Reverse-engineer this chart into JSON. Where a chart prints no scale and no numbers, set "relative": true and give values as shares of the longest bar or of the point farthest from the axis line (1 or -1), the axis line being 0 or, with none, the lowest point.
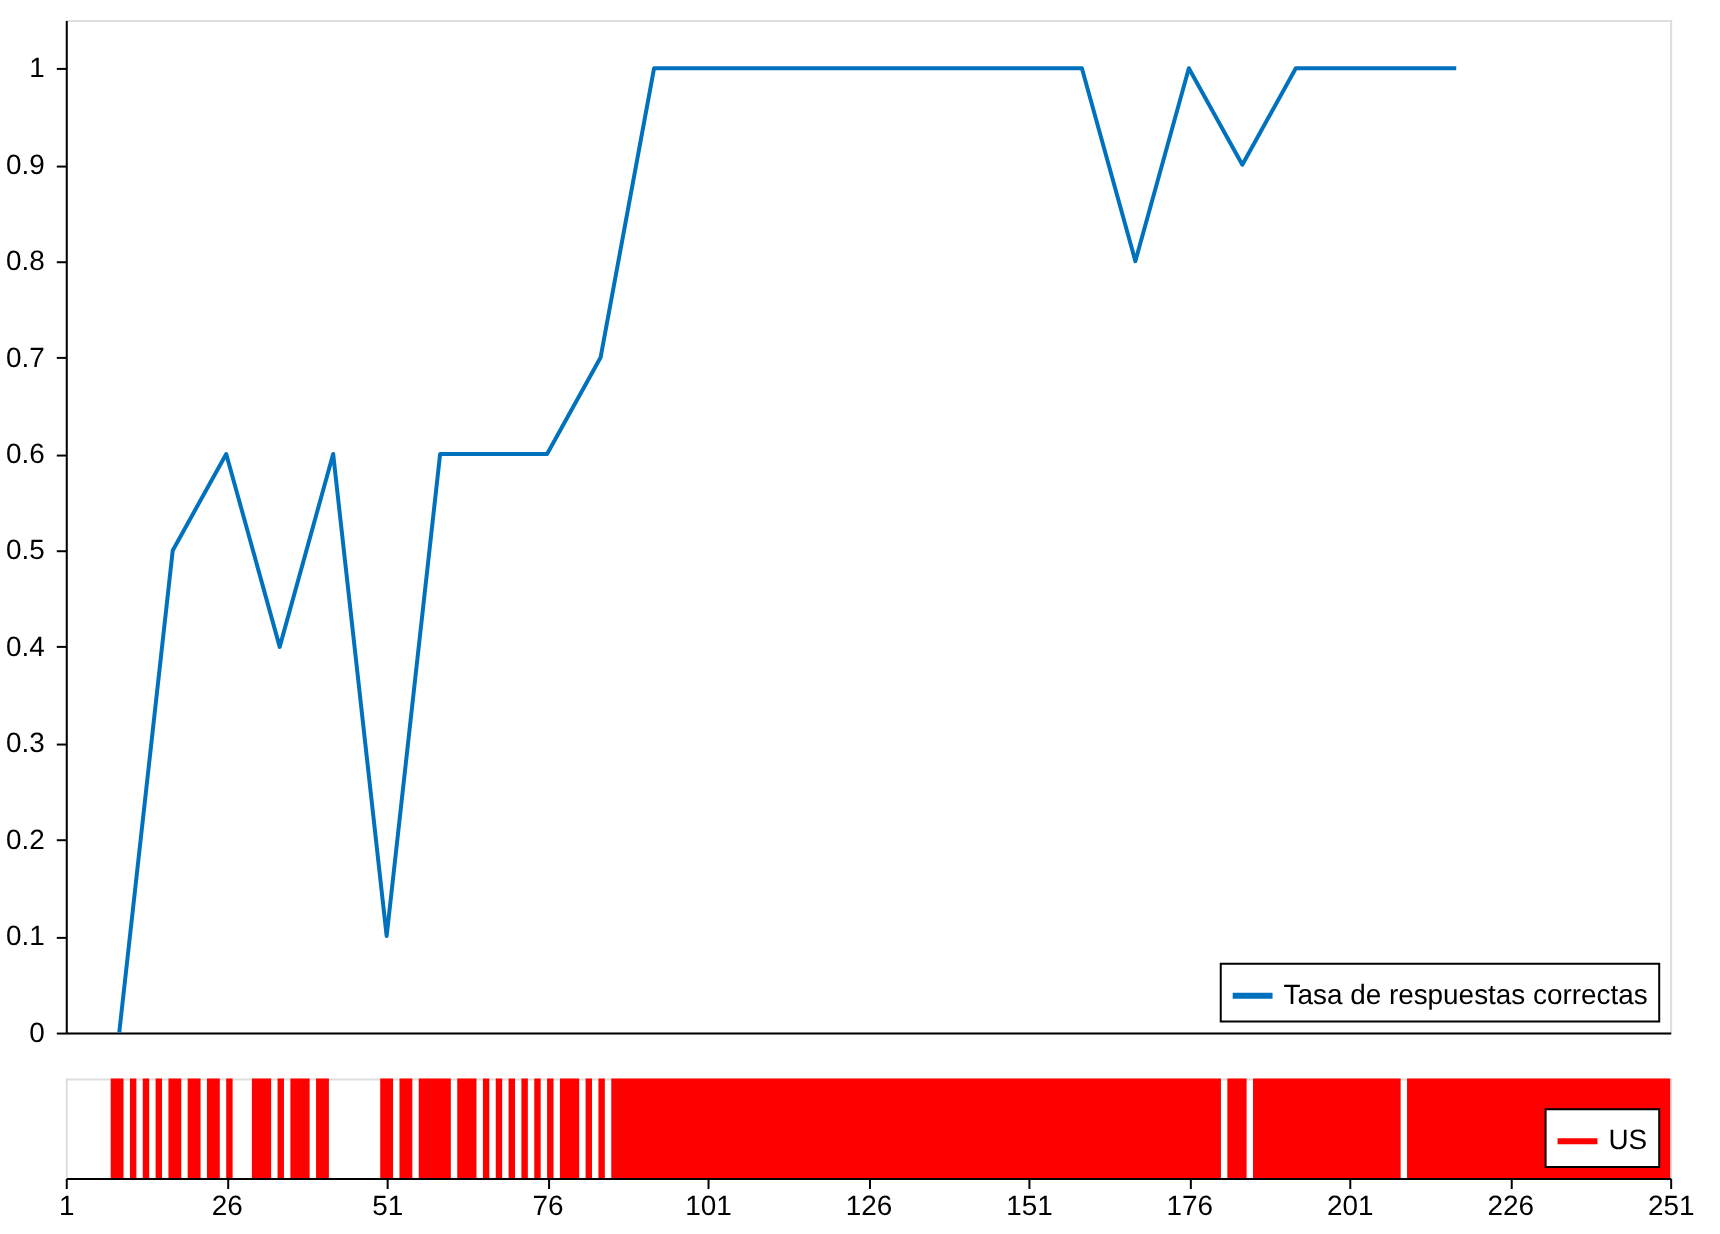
{
  "chart_data": [
    {
      "type": "line",
      "categories": [
        null,
        null,
        null,
        null,
        null,
        null,
        null,
        null,
        null,
        null,
        null,
        null,
        null,
        null,
        null,
        null,
        null,
        null,
        null,
        null,
        null,
        null,
        null,
        null,
        null,
        null,
        null,
        null,
        null,
        null,
        null
      ],
      "series": [
        {
          "name": "Tasa de respuestas correctas",
          "color": "#0072bd",
          "values": [
            null,
            0,
            0.5,
            0.6,
            0.4,
            0.6,
            0.1,
            0.6,
            0.6,
            0.6,
            0.7,
            1,
            1,
            1,
            1,
            1,
            1,
            1,
            1,
            1,
            0.8,
            1,
            0.9,
            1,
            1,
            1,
            1,
            null,
            null,
            null,
            null
          ]
        }
      ],
      "ylim": [
        0,
        1.05
      ],
      "yticks": [
        0,
        0.1,
        0.2,
        0.3,
        0.4,
        0.5,
        0.6,
        0.7,
        0.8,
        0.9,
        1
      ],
      "grid": false,
      "legend": "bottom right",
      "tick_labels": "y"
    },
    {
      "type": "area",
      "relative": true,
      "xlim": [
        1,
        251
      ],
      "xticks": [
        1,
        26,
        51,
        76,
        101,
        126,
        151,
        176,
        201,
        226,
        251
      ],
      "legend": "bottom right",
      "tick_labels": "x",
      "grid": false,
      "x": [
        1,
        2,
        3,
        4,
        5,
        6,
        7,
        8,
        9,
        10,
        11,
        12,
        13,
        14,
        15,
        16,
        17,
        18,
        19,
        20,
        21,
        22,
        23,
        24,
        25,
        26,
        27,
        28,
        29,
        30,
        31,
        32,
        33,
        34,
        35,
        36,
        37,
        38,
        39,
        40,
        41,
        42,
        43,
        44,
        45,
        46,
        47,
        48,
        49,
        50,
        51,
        52,
        53,
        54,
        55,
        56,
        57,
        58,
        59,
        60,
        61,
        62,
        63,
        64,
        65,
        66,
        67,
        68,
        69,
        70,
        71,
        72,
        73,
        74,
        75,
        76,
        77,
        78,
        79,
        80,
        81,
        82,
        83,
        84,
        85,
        86,
        87,
        88,
        89,
        90,
        91,
        92,
        93,
        94,
        95,
        96,
        97,
        98,
        99,
        100,
        101,
        102,
        103,
        104,
        105,
        106,
        107,
        108,
        109,
        110,
        111,
        112,
        113,
        114,
        115,
        116,
        117,
        118,
        119,
        120,
        121,
        122,
        123,
        124,
        125,
        126,
        127,
        128,
        129,
        130,
        131,
        132,
        133,
        134,
        135,
        136,
        137,
        138,
        139,
        140,
        141,
        142,
        143,
        144,
        145,
        146,
        147,
        148,
        149,
        150,
        151,
        152,
        153,
        154,
        155,
        156,
        157,
        158,
        159,
        160,
        161,
        162,
        163,
        164,
        165,
        166,
        167,
        168,
        169,
        170,
        171,
        172,
        173,
        174,
        175,
        176,
        177,
        178,
        179,
        180,
        181,
        182,
        183,
        184,
        185,
        186,
        187,
        188,
        189,
        190,
        191,
        192,
        193,
        194,
        195,
        196,
        197,
        198,
        199,
        200,
        201,
        202,
        203,
        204,
        205,
        206,
        207,
        208,
        209,
        210,
        211,
        212,
        213,
        214,
        215,
        216,
        217,
        218,
        219,
        220,
        221,
        222,
        223,
        224,
        225,
        226,
        227,
        228,
        229,
        230,
        231,
        232,
        233,
        234,
        235,
        236,
        237,
        238,
        239,
        240,
        241,
        242,
        243,
        244,
        245,
        246,
        247,
        248,
        249,
        250,
        251
      ],
      "series": [
        {
          "name": "US",
          "color": "#ff0000",
          "values": [
            0,
            0,
            0,
            0,
            0,
            0,
            0,
            1,
            1,
            0,
            1,
            0,
            1,
            0,
            1,
            0,
            1,
            1,
            0,
            1,
            1,
            0,
            1,
            1,
            0,
            1,
            0,
            0,
            0,
            1,
            1,
            1,
            0,
            1,
            0,
            1,
            1,
            1,
            0,
            1,
            1,
            0,
            0,
            0,
            0,
            0,
            0,
            0,
            0,
            1,
            1,
            0,
            1,
            1,
            0,
            1,
            1,
            1,
            1,
            1,
            0,
            1,
            1,
            1,
            0,
            1,
            0,
            1,
            0,
            1,
            0,
            1,
            0,
            1,
            0,
            1,
            0,
            1,
            1,
            1,
            0,
            1,
            0,
            1,
            0,
            1,
            1,
            1,
            1,
            1,
            1,
            1,
            1,
            1,
            1,
            1,
            1,
            1,
            1,
            1,
            1,
            1,
            1,
            1,
            1,
            1,
            1,
            1,
            1,
            1,
            1,
            1,
            1,
            1,
            1,
            1,
            1,
            1,
            1,
            1,
            1,
            1,
            1,
            1,
            1,
            1,
            1,
            1,
            1,
            1,
            1,
            1,
            1,
            1,
            1,
            1,
            1,
            1,
            1,
            1,
            1,
            1,
            1,
            1,
            1,
            1,
            1,
            1,
            1,
            1,
            1,
            1,
            1,
            1,
            1,
            1,
            1,
            1,
            1,
            1,
            1,
            1,
            1,
            1,
            1,
            1,
            1,
            1,
            1,
            1,
            1,
            1,
            1,
            1,
            1,
            1,
            1,
            1,
            1,
            1,
            0,
            1,
            1,
            1,
            0,
            1,
            1,
            1,
            1,
            1,
            1,
            1,
            1,
            1,
            1,
            1,
            1,
            1,
            1,
            1,
            1,
            1,
            1,
            1,
            1,
            1,
            1,
            1,
            0,
            1,
            1,
            1,
            1,
            1,
            1,
            1,
            1,
            1,
            1,
            1,
            1,
            1,
            1,
            1,
            1,
            1,
            1,
            1,
            1,
            1,
            1,
            1,
            1,
            1,
            1,
            1,
            1,
            1,
            1,
            1,
            1,
            1,
            1,
            1,
            1,
            1,
            1,
            1,
            1,
            1,
            1
          ]
        }
      ]
    }
  ]
}
